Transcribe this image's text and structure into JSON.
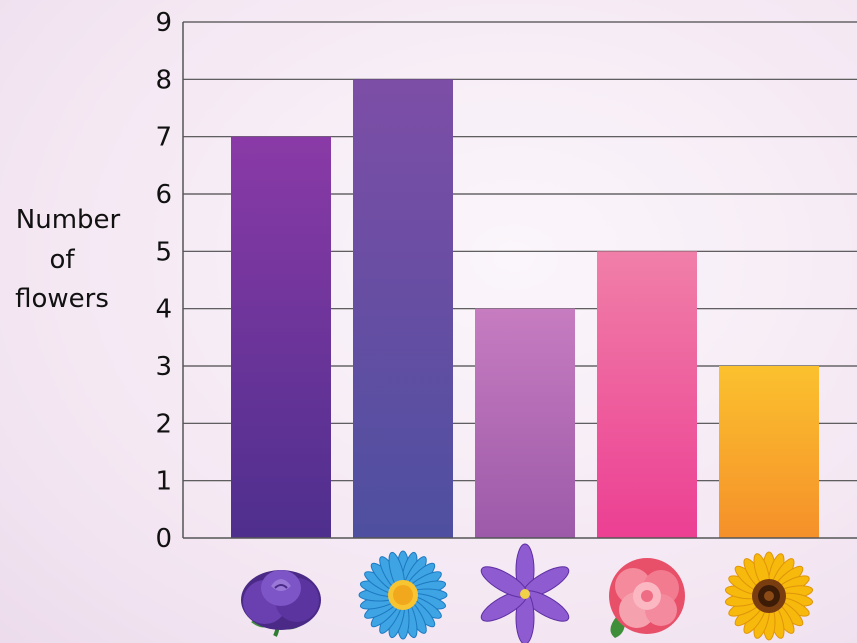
{
  "chart_data": {
    "type": "bar",
    "categories": [
      "rose",
      "daisy",
      "lily",
      "carnation",
      "sunflower"
    ],
    "values": [
      7,
      8,
      4,
      5,
      3
    ],
    "title": "",
    "xlabel": "",
    "ylabel": "Number of flowers",
    "ylabel_lines": [
      "Number",
      "of",
      "flowers"
    ],
    "ylim": [
      0,
      9
    ],
    "yticks": [
      0,
      1,
      2,
      3,
      4,
      5,
      6,
      7,
      8,
      9
    ],
    "grid": true,
    "bar_colors": [
      [
        "#8a3aa6",
        "#4e2f8e"
      ],
      [
        "#7d4ea6",
        "#4e4fa0"
      ],
      [
        "#c77cc0",
        "#9c5aa9"
      ],
      [
        "#f07fa8",
        "#ec3f93"
      ],
      [
        "#fbc12e",
        "#f5902a"
      ]
    ],
    "category_icons": [
      "rose-icon",
      "daisy-icon",
      "lily-icon",
      "carnation-icon",
      "sunflower-icon"
    ]
  }
}
